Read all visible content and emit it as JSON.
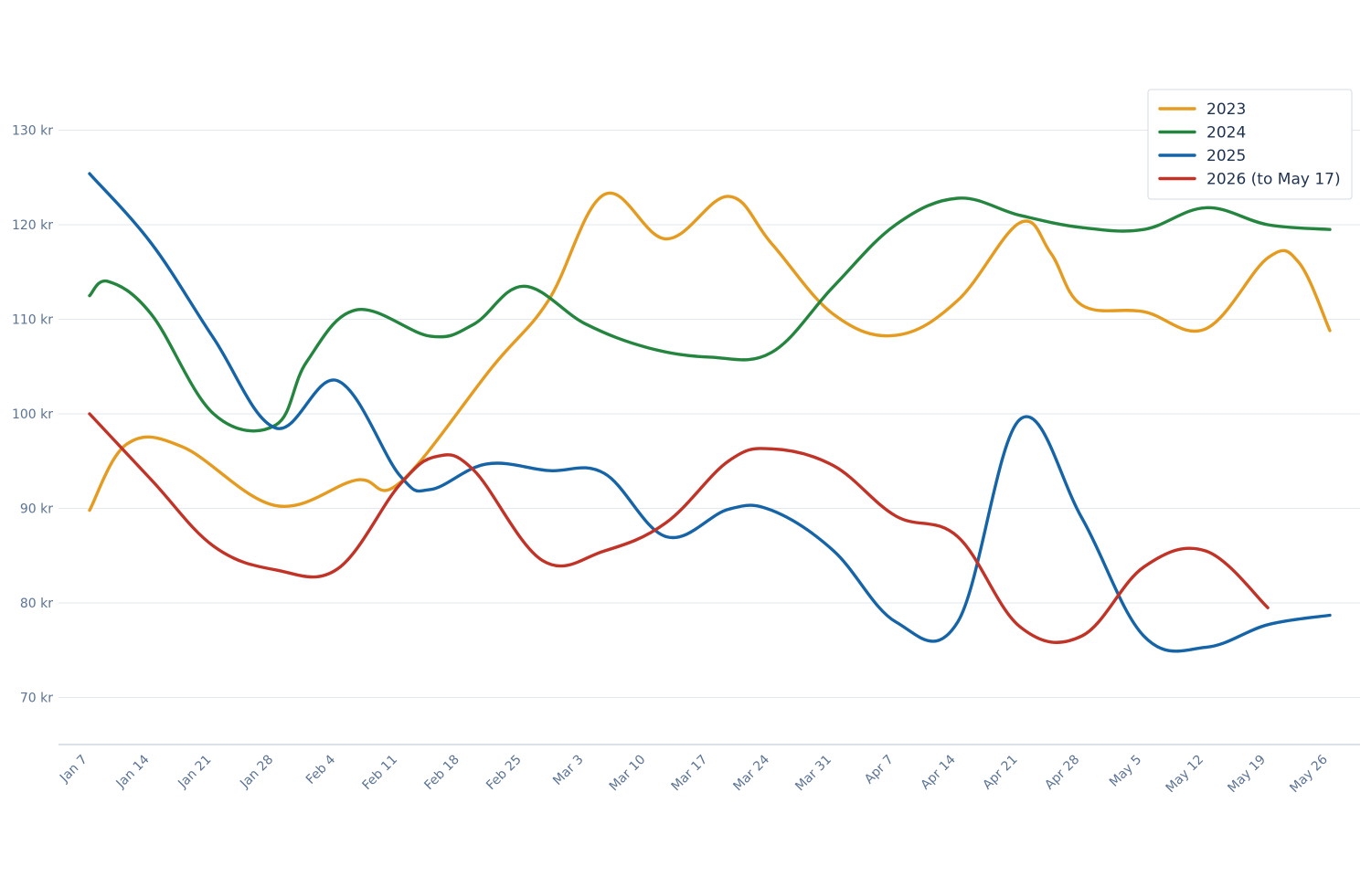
{
  "chart_data": {
    "type": "line",
    "title": "",
    "xlabel": "",
    "ylabel": "",
    "x": [
      "Jan 7",
      "Jan 14",
      "Jan 21",
      "Jan 28",
      "Feb 4",
      "Feb 11",
      "Feb 18",
      "Feb 25",
      "Mar 3",
      "Mar 10",
      "Mar 17",
      "Mar 24",
      "Mar 31",
      "Apr 7",
      "Apr 14",
      "Apr 21",
      "Apr 28",
      "May 5",
      "May 12",
      "May 19",
      "May 26"
    ],
    "ylim": [
      65,
      135
    ],
    "yticks": [
      70,
      80,
      90,
      100,
      110,
      120,
      130
    ],
    "ytick_labels": [
      "70 kr",
      "80 kr",
      "90 kr",
      "100 kr",
      "110 kr",
      "120 kr",
      "130 kr"
    ],
    "grid": true,
    "legend_position": "top-right",
    "series": [
      {
        "name": "2023",
        "color": "#e59b1f",
        "points": [
          [
            0,
            89.8
          ],
          [
            0.6,
            96.8
          ],
          [
            1.5,
            96.5
          ],
          [
            3,
            90.3
          ],
          [
            4.3,
            93
          ],
          [
            5,
            92.7
          ],
          [
            6.5,
            105
          ],
          [
            7.4,
            112
          ],
          [
            8.3,
            123.2
          ],
          [
            9.3,
            118.5
          ],
          [
            10.3,
            123
          ],
          [
            11,
            118
          ],
          [
            12,
            110.5
          ],
          [
            13,
            108.3
          ],
          [
            14,
            112
          ],
          [
            15,
            120.2
          ],
          [
            15.5,
            117
          ],
          [
            16,
            111.5
          ],
          [
            17,
            110.8
          ],
          [
            18,
            109
          ],
          [
            19,
            116.5
          ],
          [
            19.5,
            116
          ],
          [
            20,
            108.8
          ]
        ]
      },
      {
        "name": "2024",
        "color": "#24853f",
        "points": [
          [
            0,
            112.5
          ],
          [
            0.3,
            114
          ],
          [
            1,
            110.5
          ],
          [
            2,
            100
          ],
          [
            3,
            98.8
          ],
          [
            3.5,
            105.5
          ],
          [
            4.3,
            111
          ],
          [
            5.5,
            108.2
          ],
          [
            6.2,
            109.5
          ],
          [
            7,
            113.5
          ],
          [
            8,
            109.5
          ],
          [
            9,
            107
          ],
          [
            10,
            106
          ],
          [
            11,
            106.5
          ],
          [
            12,
            113.5
          ],
          [
            13,
            120
          ],
          [
            14,
            122.8
          ],
          [
            15,
            121
          ],
          [
            16,
            119.7
          ],
          [
            17,
            119.5
          ],
          [
            18,
            121.8
          ],
          [
            19,
            120
          ],
          [
            20,
            119.5
          ]
        ]
      },
      {
        "name": "2025",
        "color": "#1664a8",
        "points": [
          [
            0,
            125.4
          ],
          [
            1,
            118
          ],
          [
            2,
            108
          ],
          [
            3,
            98.5
          ],
          [
            4,
            103.5
          ],
          [
            5,
            93.5
          ],
          [
            5.5,
            92
          ],
          [
            6.4,
            94.7
          ],
          [
            7.4,
            94
          ],
          [
            8.3,
            93.7
          ],
          [
            9.3,
            87
          ],
          [
            10.3,
            89.9
          ],
          [
            11,
            89.8
          ],
          [
            12,
            85.5
          ],
          [
            13,
            78
          ],
          [
            14,
            78
          ],
          [
            15,
            99.4
          ],
          [
            16,
            89
          ],
          [
            17,
            76.5
          ],
          [
            18,
            75.3
          ],
          [
            19,
            77.7
          ],
          [
            20,
            78.7
          ]
        ]
      },
      {
        "name": "2026 (to May 17)",
        "color": "#c13326",
        "points": [
          [
            0,
            100
          ],
          [
            1,
            93
          ],
          [
            2,
            86
          ],
          [
            3,
            83.5
          ],
          [
            4,
            83.6
          ],
          [
            5,
            92.5
          ],
          [
            5.6,
            95.5
          ],
          [
            6.2,
            94
          ],
          [
            7.3,
            84.5
          ],
          [
            8.3,
            85.5
          ],
          [
            9.3,
            88.5
          ],
          [
            10.3,
            95
          ],
          [
            11,
            96.3
          ],
          [
            12,
            94.5
          ],
          [
            13,
            89.2
          ],
          [
            14,
            87
          ],
          [
            15,
            77.5
          ],
          [
            16,
            76.5
          ],
          [
            17,
            83.8
          ],
          [
            18,
            85.5
          ],
          [
            19,
            79.5
          ]
        ]
      }
    ]
  }
}
